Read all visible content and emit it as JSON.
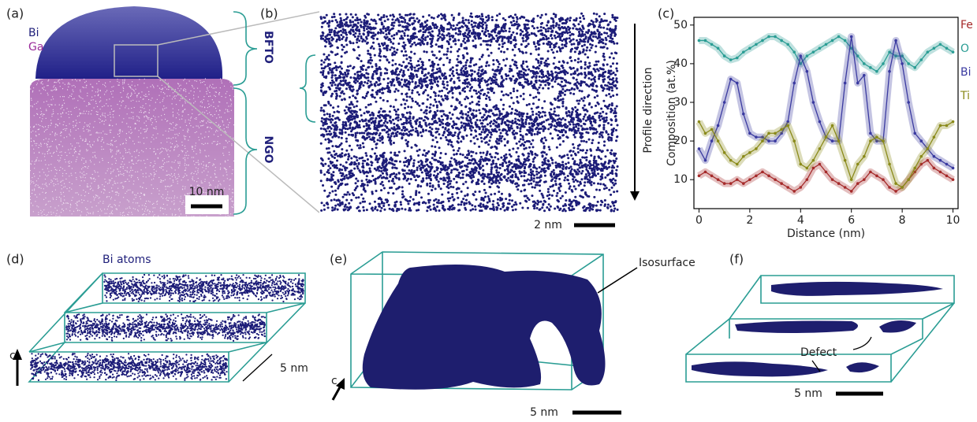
{
  "panels": {
    "a": {
      "label": "(a)",
      "legend_bi": "Bi",
      "legend_ga": "Ga",
      "region_top": "BFTO",
      "region_bottom": "NGO",
      "scale": "10 nm"
    },
    "b": {
      "label": "(b)",
      "arrow": "Profile direction",
      "scale": "2 nm"
    },
    "c": {
      "label": "(c)"
    },
    "d": {
      "label": "(d)",
      "title": "Bi atoms",
      "axis": "c",
      "scale": "5 nm"
    },
    "e": {
      "label": "(e)",
      "callout": "Isosurface",
      "axis": "c",
      "scale": "5 nm"
    },
    "f": {
      "label": "(f)",
      "callout": "Defect",
      "scale": "5 nm"
    }
  },
  "chart_data": {
    "type": "line",
    "x_label": "Distance (nm)",
    "y_label": "Composition (at.%)",
    "x": [
      0,
      0.25,
      0.5,
      0.75,
      1,
      1.25,
      1.5,
      1.75,
      2,
      2.25,
      2.5,
      2.75,
      3,
      3.25,
      3.5,
      3.75,
      4,
      4.25,
      4.5,
      4.75,
      5,
      5.25,
      5.5,
      5.75,
      6,
      6.25,
      6.5,
      6.75,
      7,
      7.25,
      7.5,
      7.75,
      8,
      8.25,
      8.5,
      8.75,
      9,
      9.25,
      9.5,
      9.75,
      10
    ],
    "series": [
      {
        "name": "Fe",
        "color": "#a52a2a",
        "values": [
          11,
          12,
          11,
          10,
          9,
          9,
          10,
          9,
          10,
          11,
          12,
          11,
          10,
          9,
          8,
          7,
          8,
          10,
          13,
          14,
          12,
          10,
          9,
          8,
          7,
          9,
          10,
          12,
          11,
          10,
          8,
          7,
          8,
          10,
          12,
          14,
          15,
          13,
          12,
          11,
          10
        ]
      },
      {
        "name": "O",
        "color": "#2a9d94",
        "values": [
          46,
          46,
          45,
          44,
          42,
          41,
          41.5,
          43,
          44,
          45,
          46,
          47,
          47,
          46,
          45,
          43,
          40,
          42,
          43,
          44,
          45,
          46,
          47,
          46,
          44,
          42,
          40,
          39,
          38,
          40,
          43,
          42,
          42,
          40,
          39,
          41,
          43,
          44,
          45,
          44,
          43
        ]
      },
      {
        "name": "Bi",
        "color": "#3a3aa0",
        "values": [
          18,
          15,
          20,
          24,
          30,
          36,
          35,
          27,
          22,
          21,
          21,
          20,
          20,
          22,
          25,
          35,
          42,
          38,
          30,
          25,
          21,
          20,
          20,
          35,
          47,
          35,
          37,
          22,
          20,
          20,
          38,
          46,
          40,
          30,
          22,
          20,
          18,
          16,
          15,
          14,
          13
        ]
      },
      {
        "name": "Ti",
        "color": "#8a8a1a",
        "values": [
          25,
          22,
          23,
          20,
          17,
          15,
          14,
          16,
          17,
          18,
          20,
          22,
          22,
          23,
          24,
          20,
          14,
          13,
          15,
          18,
          21,
          24,
          20,
          15,
          10,
          14,
          16,
          20,
          21,
          20,
          14,
          9,
          8,
          10,
          13,
          16,
          18,
          21,
          24,
          24,
          25
        ]
      }
    ],
    "xlim": [
      -0.2,
      10.2
    ],
    "ylim": [
      2.5,
      52
    ],
    "xticks": [
      0,
      2,
      4,
      6,
      8,
      10
    ],
    "yticks": [
      10,
      20,
      30,
      40,
      50
    ],
    "grid": false,
    "legend": "right"
  }
}
